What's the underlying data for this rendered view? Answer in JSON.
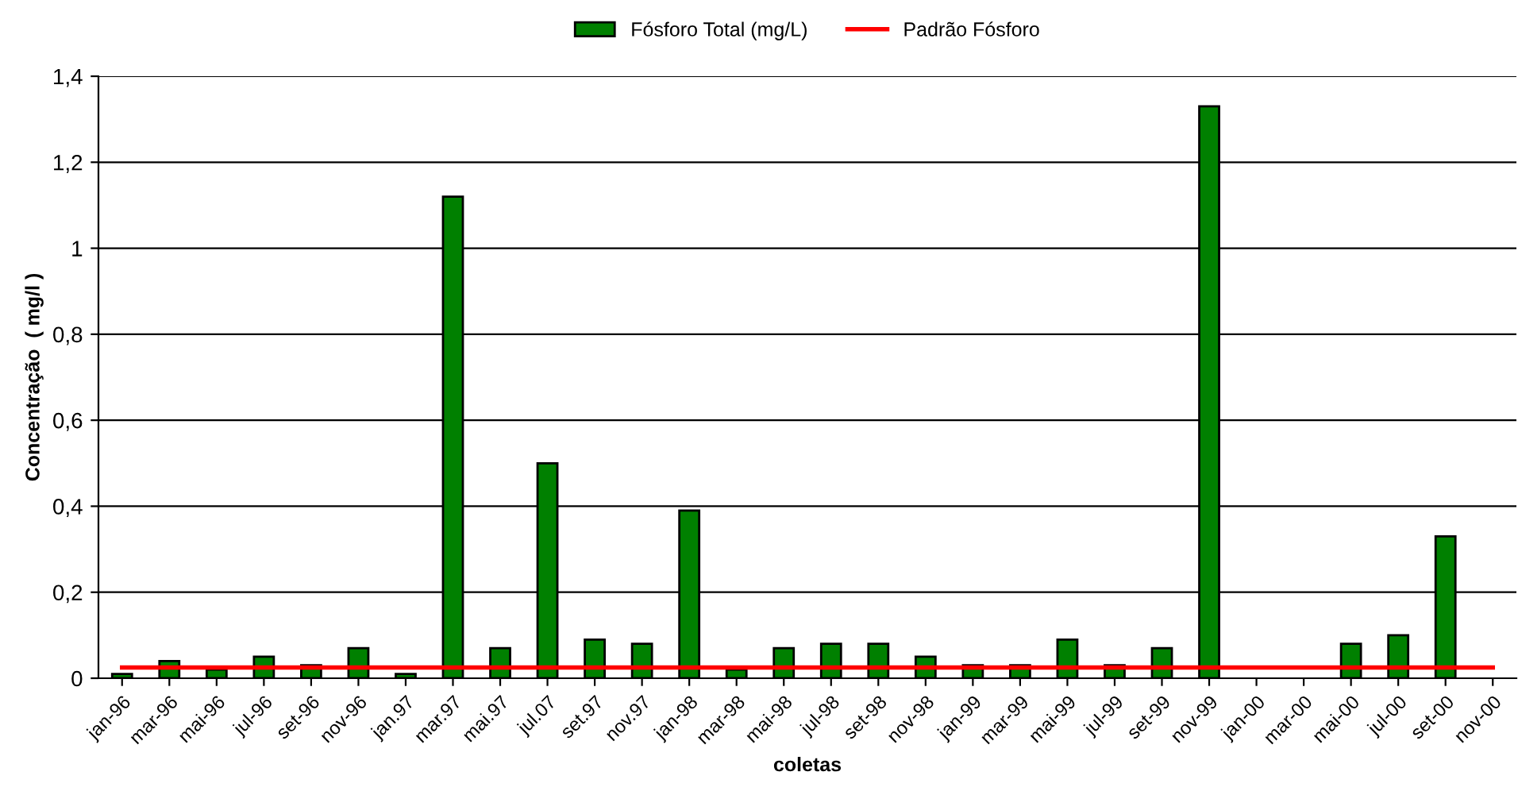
{
  "chart_data": {
    "type": "bar",
    "xlabel": "coletas",
    "ylabel": "Concentração  ( mg/l )",
    "categories": [
      "jan-96",
      "mar-96",
      "mai-96",
      "jul-96",
      "set-96",
      "nov-96",
      "jan.97",
      "mar.97",
      "mai.97",
      "jul.07",
      "set.97",
      "nov.97",
      "jan-98",
      "mar-98",
      "mai-98",
      "jul-98",
      "set-98",
      "nov-98",
      "jan-99",
      "mar-99",
      "mai-99",
      "jul-99",
      "set-99",
      "nov-99",
      "jan-00",
      "mar-00",
      "mai-00",
      "jul-00",
      "set-00",
      "nov-00"
    ],
    "series": [
      {
        "name": "Fósforo Total (mg/L)",
        "color": "#008000",
        "values": [
          0.01,
          0.04,
          0.02,
          0.05,
          0.03,
          0.07,
          0.01,
          1.12,
          0.07,
          0.5,
          0.09,
          0.08,
          0.39,
          0.02,
          0.07,
          0.08,
          0.08,
          0.05,
          0.03,
          0.03,
          0.09,
          0.03,
          0.07,
          1.33,
          null,
          null,
          0.08,
          0.1,
          0.33,
          null
        ]
      },
      {
        "name": "Padrão Fósforo",
        "type": "line",
        "color": "#ff0000",
        "values": [
          0.025,
          0.025,
          0.025,
          0.025,
          0.025,
          0.025,
          0.025,
          0.025,
          0.025,
          0.025,
          0.025,
          0.025,
          0.025,
          0.025,
          0.025,
          0.025,
          0.025,
          0.025,
          0.025,
          0.025,
          0.025,
          0.025,
          0.025,
          0.025,
          0.025,
          0.025,
          0.025,
          0.025,
          0.025,
          0.025
        ]
      }
    ],
    "ylim": [
      0,
      1.4
    ],
    "yticks": [
      {
        "value": 0,
        "label": "0"
      },
      {
        "value": 0.2,
        "label": "0,2"
      },
      {
        "value": 0.4,
        "label": "0,4"
      },
      {
        "value": 0.6,
        "label": "0,6"
      },
      {
        "value": 0.8,
        "label": "0,8"
      },
      {
        "value": 1,
        "label": "1"
      },
      {
        "value": 1.2,
        "label": "1,2"
      },
      {
        "value": 1.4,
        "label": "1,4"
      }
    ],
    "grid": "y",
    "legend": "top",
    "marker": "none",
    "line_style": "solid"
  }
}
